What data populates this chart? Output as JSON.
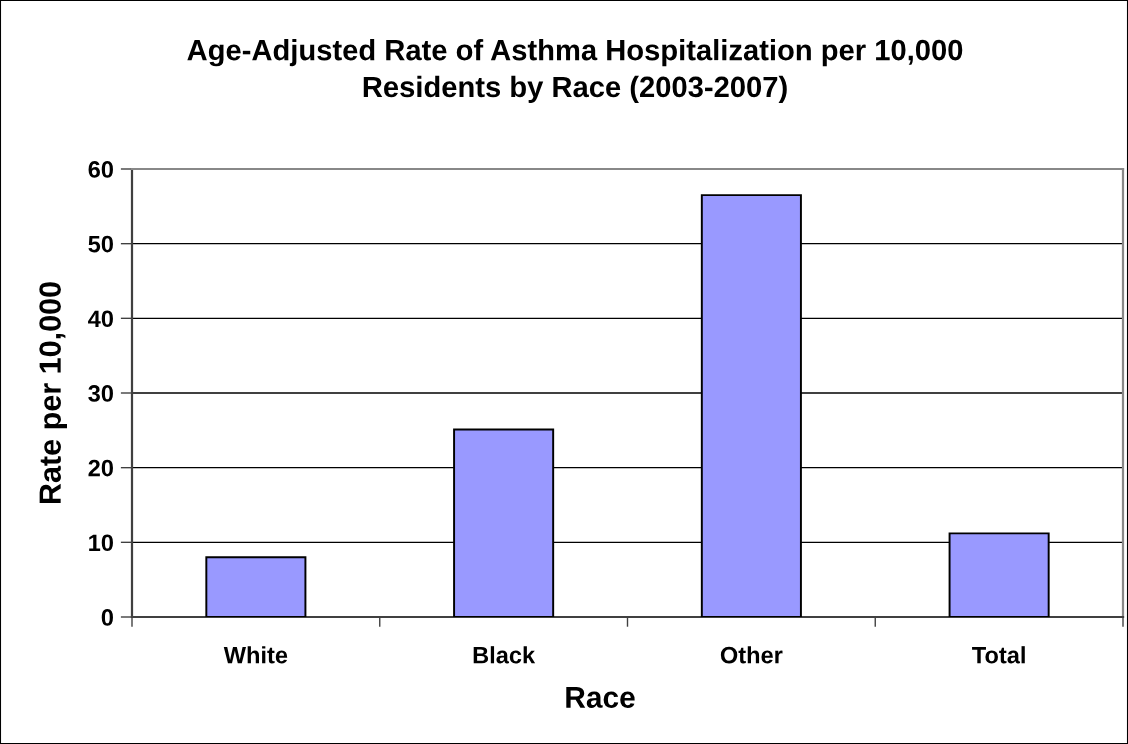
{
  "chart_data": {
    "type": "bar",
    "title": "Age-Adjusted Rate of Asthma Hospitalization per 10,000\nResidents by Race (2003-2007)",
    "xlabel": "Race",
    "ylabel": "Rate per 10,000",
    "categories": [
      "White",
      "Black",
      "Other",
      "Total"
    ],
    "values": [
      8.0,
      25.1,
      56.5,
      11.2
    ],
    "color": "#9999ff",
    "ylim": [
      0,
      60
    ],
    "yticks": [
      0,
      10,
      20,
      30,
      40,
      50,
      60
    ],
    "grid": "y",
    "legend": false
  }
}
